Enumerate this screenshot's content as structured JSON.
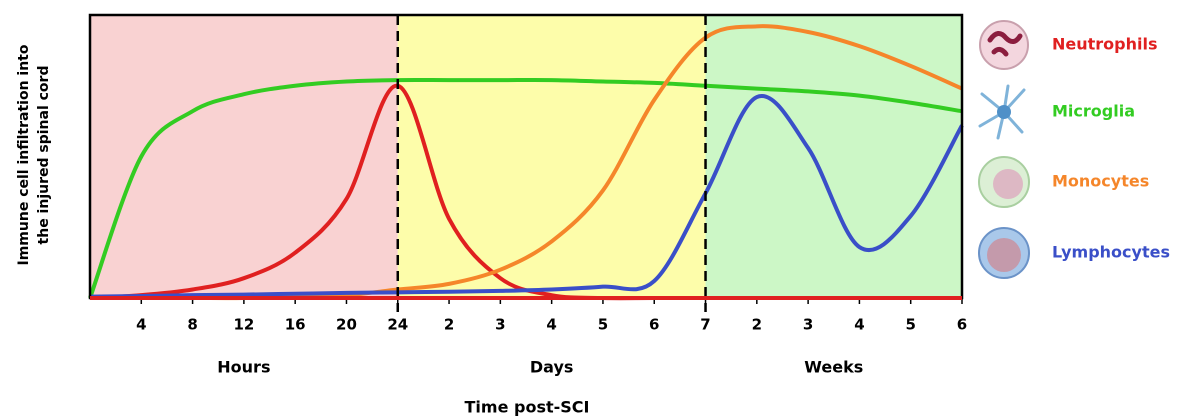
{
  "chart_data": {
    "type": "line",
    "ylabel": [
      "Immune cell infiltration into",
      "the injured spinal cord"
    ],
    "xlabel": "Time post-SCI",
    "categories": [
      null,
      "4",
      "8",
      "12",
      "16",
      "20",
      "24",
      "2",
      "3",
      "4",
      "5",
      "6",
      "7",
      "2",
      "3",
      "4",
      "5",
      "6"
    ],
    "phases": [
      {
        "label": "Hours",
        "color": "#f9d2d2"
      },
      {
        "label": "Days",
        "color": "#fdfdaa"
      },
      {
        "label": "Weeks",
        "color": "#ccf7c6"
      }
    ],
    "ylim": [
      0,
      100
    ],
    "series": [
      {
        "name": "Neutrophils",
        "color": "#e02020",
        "values": [
          0,
          1,
          3,
          7,
          16,
          35,
          75,
          28,
          7,
          1,
          0,
          0,
          0,
          0,
          0,
          0,
          0,
          0
        ]
      },
      {
        "name": "Microglia",
        "color": "#33cc22",
        "values": [
          0,
          50,
          66,
          72,
          75,
          76.5,
          77,
          77,
          77,
          77,
          76.5,
          76,
          75,
          74,
          73,
          71.5,
          69,
          66
        ]
      },
      {
        "name": "Monocytes",
        "color": "#f5862a",
        "values": [
          0,
          0,
          0,
          0,
          0.5,
          1,
          3,
          5,
          10,
          20,
          38,
          70,
          92,
          96,
          94,
          89,
          82,
          74
        ]
      },
      {
        "name": "Lymphocytes",
        "color": "#3a4fc8",
        "values": [
          0.5,
          0.7,
          1,
          1.2,
          1.5,
          1.8,
          2,
          2.2,
          2.5,
          3,
          4,
          6,
          37,
          71,
          53,
          18,
          29,
          61
        ]
      }
    ]
  }
}
